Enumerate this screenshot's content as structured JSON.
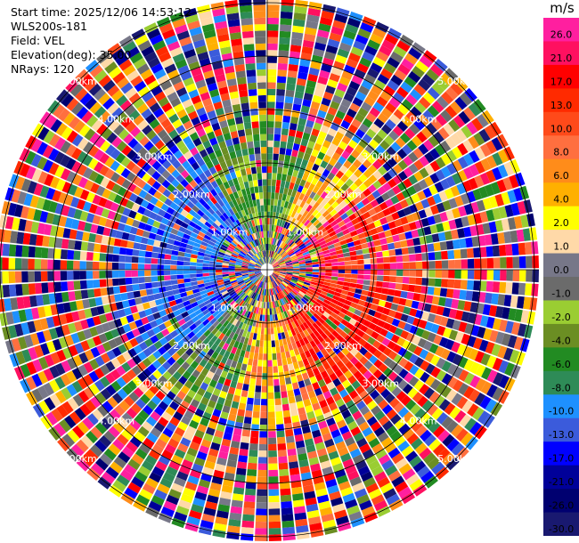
{
  "header": {
    "start_time": "Start time: 2025/12/06 14:53:12",
    "instrument": "WLS200s-181",
    "field": "Field: VEL",
    "elevation": "Elevation(deg): 35.00",
    "nrays": "NRays: 120"
  },
  "colorbar": {
    "unit": "m/s",
    "levels": [
      {
        "label": "26.0",
        "color": "#ff1f9f"
      },
      {
        "label": "21.0",
        "color": "#ff1060"
      },
      {
        "label": "17.0",
        "color": "#ff0000"
      },
      {
        "label": "13.0",
        "color": "#ff2a00"
      },
      {
        "label": "10.0",
        "color": "#ff4a1a"
      },
      {
        "label": "8.0",
        "color": "#ff6f3f"
      },
      {
        "label": "6.0",
        "color": "#ff8c1a"
      },
      {
        "label": "4.0",
        "color": "#ffb000"
      },
      {
        "label": "2.0",
        "color": "#ffff00"
      },
      {
        "label": "1.0",
        "color": "#ffd9a8"
      },
      {
        "label": "0.0",
        "color": "#777788"
      },
      {
        "label": "-1.0",
        "color": "#6b6b6b"
      },
      {
        "label": "-2.0",
        "color": "#9acd32"
      },
      {
        "label": "-4.0",
        "color": "#6b8e23"
      },
      {
        "label": "-6.0",
        "color": "#228b22"
      },
      {
        "label": "-8.0",
        "color": "#2e8b57"
      },
      {
        "label": "-10.0",
        "color": "#1e90ff"
      },
      {
        "label": "-13.0",
        "color": "#3b5bdb"
      },
      {
        "label": "-17.0",
        "color": "#0000ff"
      },
      {
        "label": "-21.0",
        "color": "#000099"
      },
      {
        "label": "-26.0",
        "color": "#000070"
      },
      {
        "label": "-30.0",
        "color": "#191970"
      }
    ]
  },
  "range_labels": [
    "1.00km",
    "2.00km",
    "3.00km",
    "4.00km",
    "5.00km"
  ]
}
